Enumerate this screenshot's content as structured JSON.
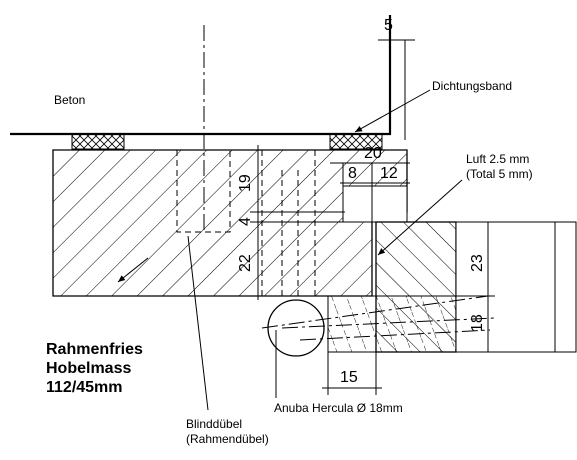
{
  "labels": {
    "beton": "Beton",
    "dichtungsband": "Dichtungsband",
    "luft_line1": "Luft 2.5 mm",
    "luft_line2": "(Total 5 mm)",
    "rahmenfries_line1": "Rahmenfries",
    "rahmenfries_line2": "Hobelmass",
    "rahmenfries_line3": "112/45mm",
    "blinddubel_line1": "Blinddübel",
    "blinddubel_line2": "(Rahmendübel)",
    "anuba": "Anuba Hercula Ø 18mm"
  },
  "dimensions": {
    "d5": "5",
    "d20": "20",
    "d8": "8",
    "d12": "12",
    "d19": "19",
    "d4": "4",
    "d22": "22",
    "d23": "23",
    "d18": "18",
    "d15": "15"
  }
}
